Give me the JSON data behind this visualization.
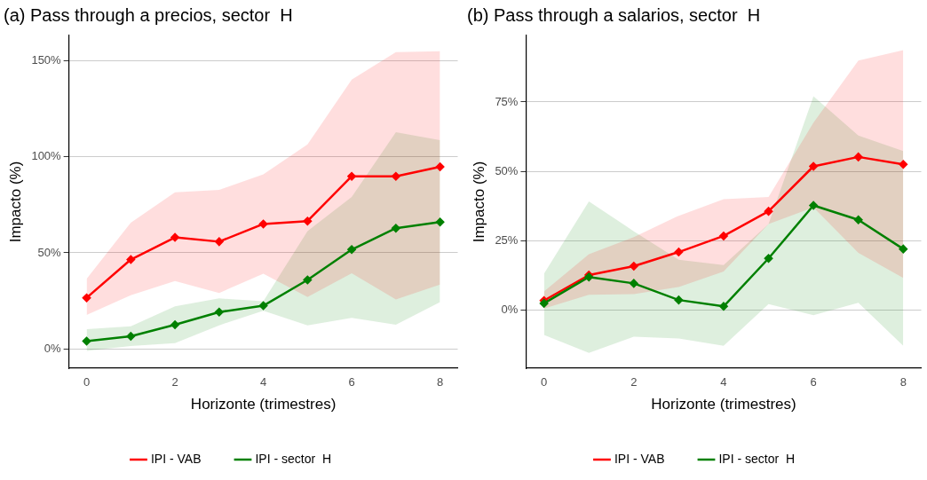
{
  "chart_data": [
    {
      "type": "line",
      "title": "(a) Pass through a precios, sector  H",
      "xlabel": "Horizonte (trimestres)",
      "ylabel": "Impacto (%)",
      "x": [
        0,
        1,
        2,
        3,
        4,
        5,
        6,
        7,
        8
      ],
      "xlim": [
        -0.4,
        8.4
      ],
      "xticks": [
        0,
        2,
        4,
        6,
        8
      ],
      "ylim": [
        -10,
        163
      ],
      "yticks": [
        {
          "value": 0,
          "label": "0%"
        },
        {
          "value": 50,
          "label": "50%"
        },
        {
          "value": 100,
          "label": "100%"
        },
        {
          "value": 150,
          "label": "150%"
        }
      ],
      "grid": "y",
      "legend": "bottom",
      "marker": "diamond",
      "series": [
        {
          "name": "IPI - VAB",
          "color": "#ff0000",
          "values": [
            26.6,
            46.5,
            58,
            55.8,
            65,
            66.5,
            89.8,
            89.8,
            94.7
          ],
          "lower": [
            17.7,
            28,
            35.3,
            29.1,
            39.1,
            27,
            39.4,
            25.8,
            33.5
          ],
          "upper": [
            36.5,
            65.7,
            81.5,
            82.7,
            90.8,
            106.4,
            140,
            154.4,
            154.8
          ]
        },
        {
          "name": "IPI - sector  H",
          "color": "#008000",
          "values": [
            4.1,
            6.6,
            12.6,
            19.2,
            22.5,
            35.9,
            51.7,
            62.8,
            66
          ],
          "lower": [
            -1,
            1.5,
            3,
            12.3,
            19.9,
            12.3,
            16.2,
            12.6,
            24.4
          ],
          "upper": [
            10.3,
            11.8,
            22.2,
            26.3,
            24.8,
            61.3,
            79,
            112.7,
            108.6
          ]
        }
      ]
    },
    {
      "type": "line",
      "title": "(b) Pass through a salarios, sector  H",
      "xlabel": "Horizonte (trimestres)",
      "ylabel": "Impacto (%)",
      "x": [
        0,
        1,
        2,
        3,
        4,
        5,
        6,
        7,
        8
      ],
      "xlim": [
        -0.4,
        8.4
      ],
      "xticks": [
        0,
        2,
        4,
        6,
        8
      ],
      "ylim": [
        -21,
        99
      ],
      "yticks": [
        {
          "value": 0,
          "label": "0%"
        },
        {
          "value": 25,
          "label": "25%"
        },
        {
          "value": 50,
          "label": "50%"
        },
        {
          "value": 75,
          "label": "75%"
        }
      ],
      "grid": "y",
      "legend": "bottom",
      "marker": "diamond",
      "series": [
        {
          "name": "IPI - VAB",
          "color": "#ff0000",
          "values": [
            3.4,
            12.6,
            15.8,
            20.9,
            26.7,
            35.6,
            51.8,
            55.2,
            52.5
          ],
          "lower": [
            0.5,
            5.5,
            5.7,
            8.3,
            13.9,
            31,
            37,
            20.6,
            11.6
          ],
          "upper": [
            6.7,
            20.1,
            26.3,
            34,
            40,
            40.8,
            67.6,
            90,
            93.7
          ]
        },
        {
          "name": "IPI - sector  H",
          "color": "#008000",
          "values": [
            2.4,
            11.9,
            9.6,
            3.6,
            1.3,
            18.6,
            37.7,
            32.5,
            22
          ],
          "lower": [
            -9,
            -15.5,
            -9.6,
            -10.3,
            -12.9,
            2.1,
            -1.9,
            2.6,
            -12.9
          ],
          "upper": [
            13.1,
            39.2,
            28.4,
            18.1,
            16.2,
            31,
            77.1,
            62.9,
            57.3
          ]
        }
      ]
    }
  ]
}
